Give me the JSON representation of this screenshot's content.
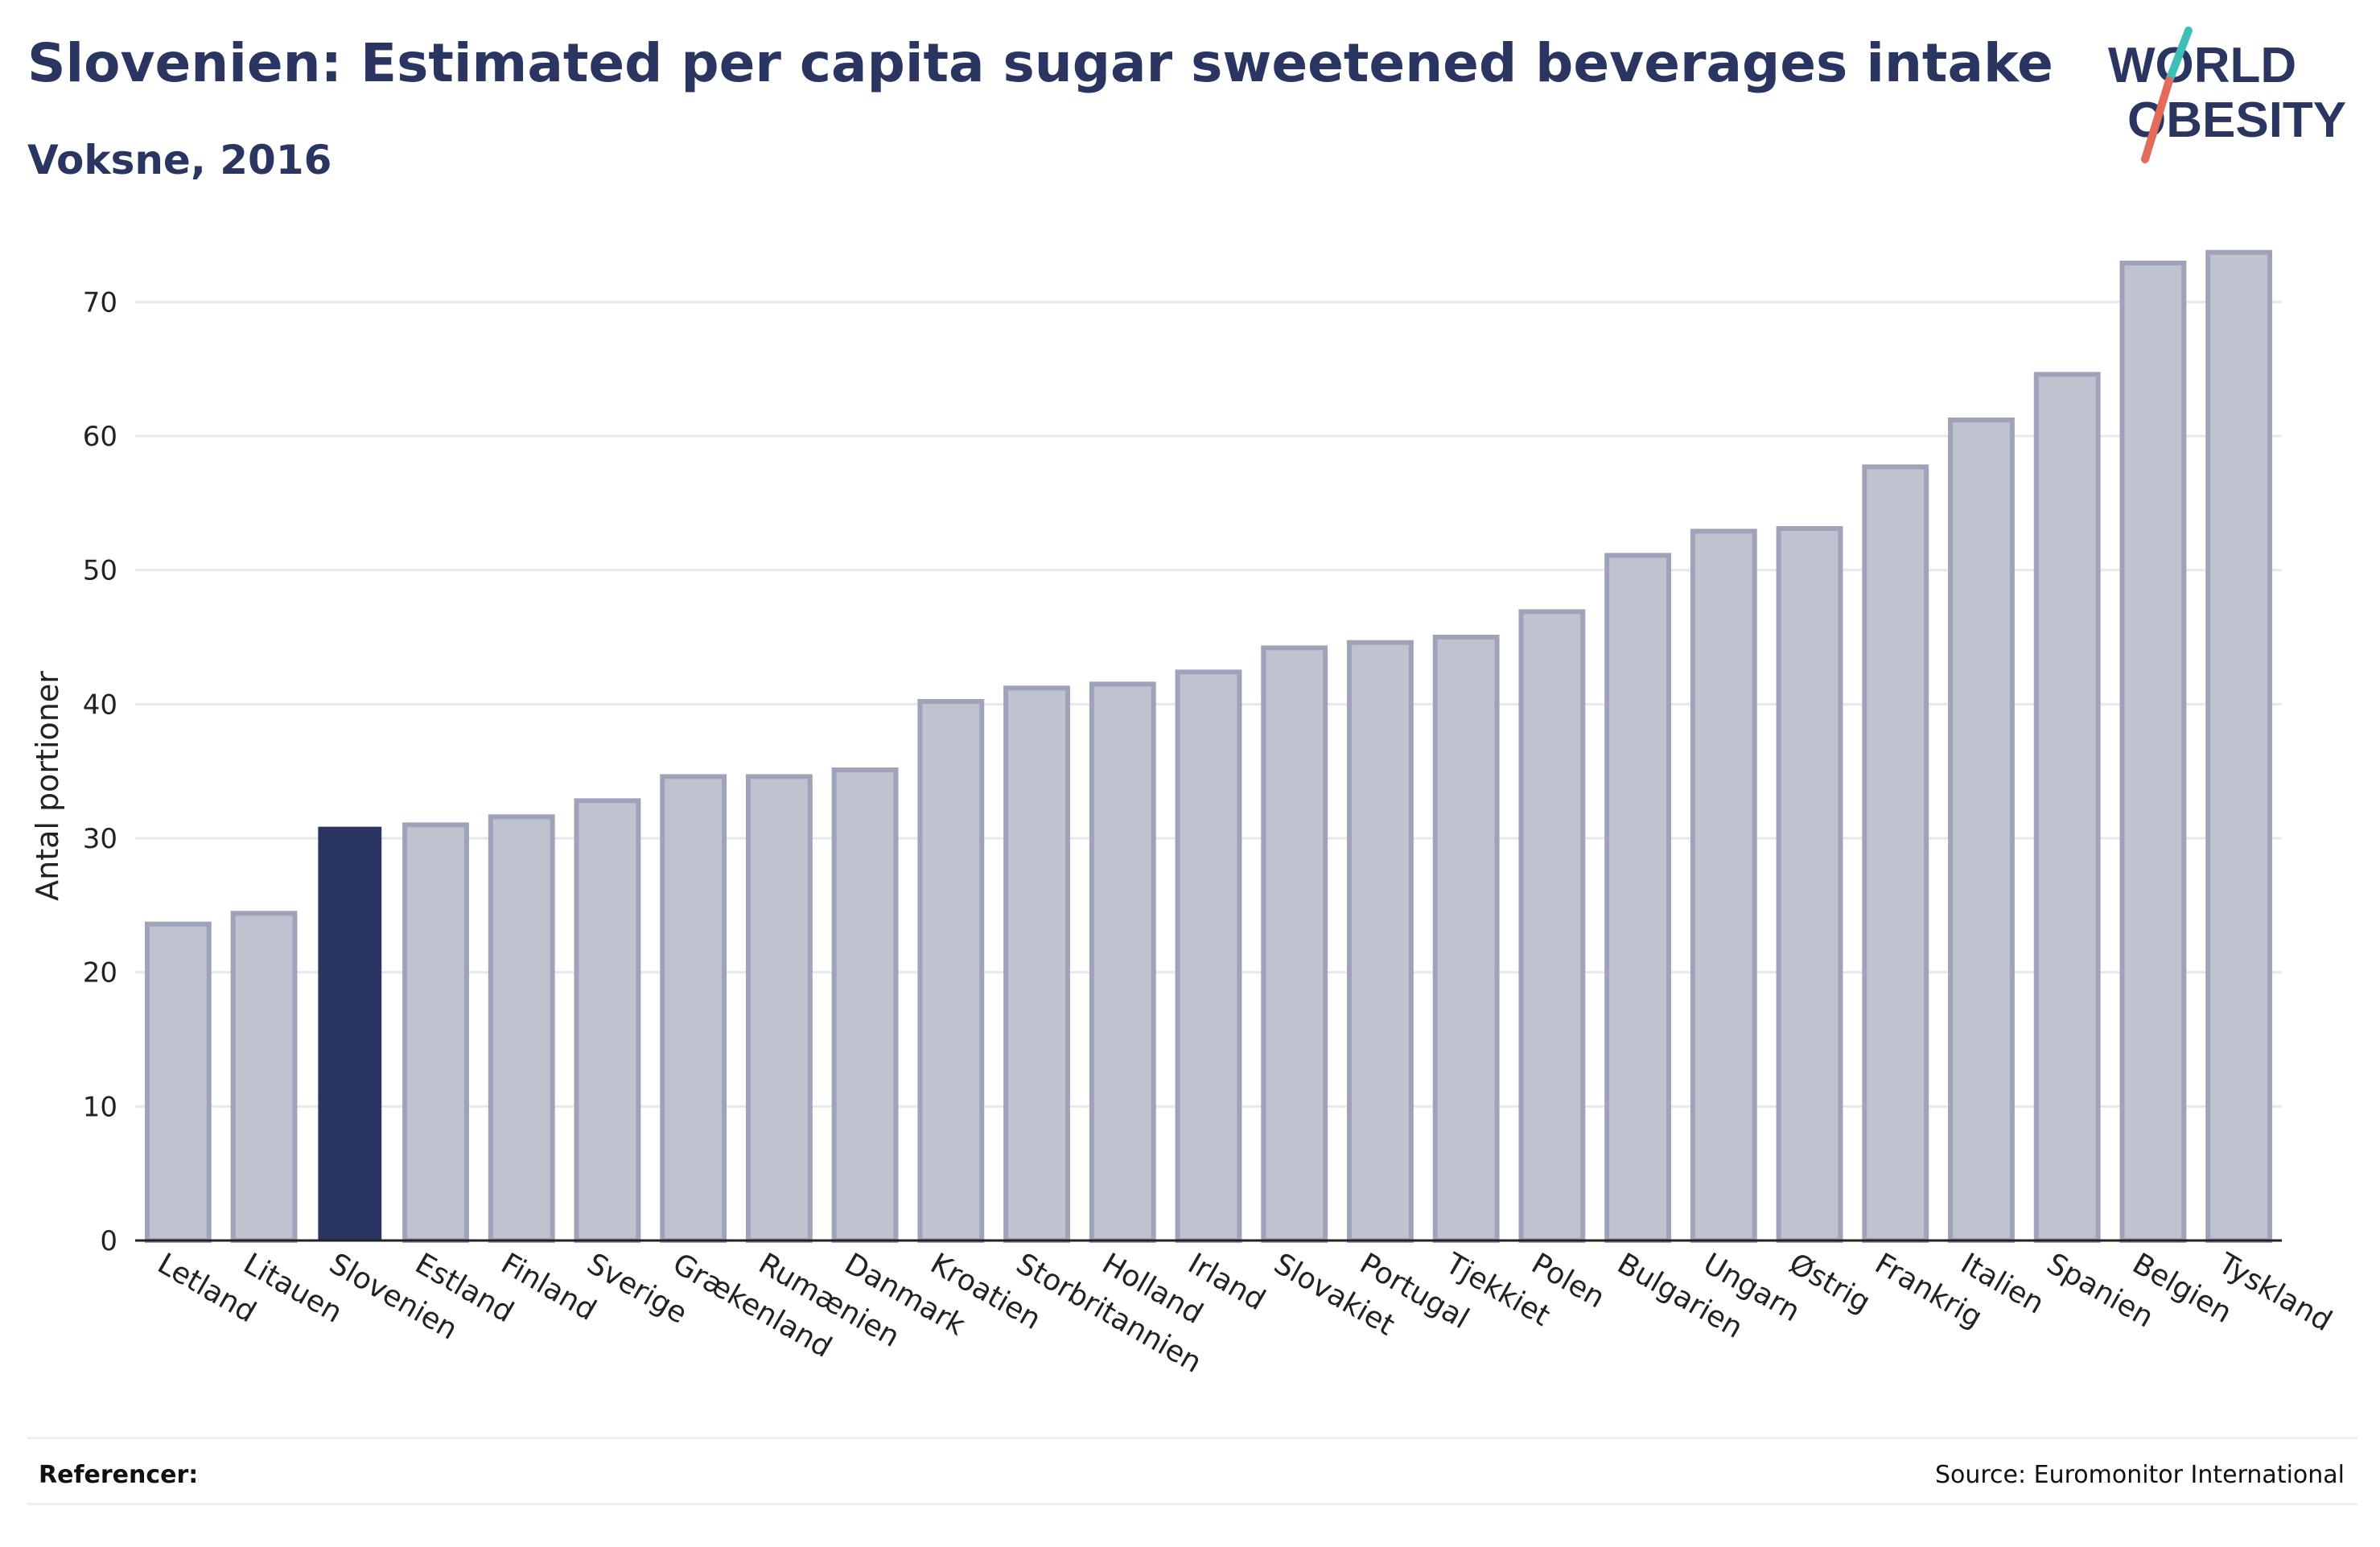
{
  "header": {
    "title": "Slovenien: Estimated per capita sugar sweetened beverages intake",
    "subtitle": "Voksne, 2016"
  },
  "logo": {
    "line1": "WORLD",
    "line2": "OBESITY"
  },
  "footer": {
    "references_label": "Referencer:",
    "source": "Source: Euromonitor International"
  },
  "colors": {
    "highlight": "#2a3561",
    "bar_fill": "#bfc2cf",
    "bar_stroke": "#9ea3b9",
    "title": "#2a3561",
    "logo_teal": "#3dbfb8",
    "logo_red": "#e46a5a"
  },
  "chart_data": {
    "type": "bar",
    "ylabel": "Antal portioner",
    "xlabel": "",
    "ylim": [
      0,
      75
    ],
    "yticks": [
      0,
      10,
      20,
      30,
      40,
      50,
      60,
      70
    ],
    "grid": true,
    "highlight": "Slovenien",
    "categories": [
      "Letland",
      "Litauen",
      "Slovenien",
      "Estland",
      "Finland",
      "Sverige",
      "Grækenland",
      "Rumænien",
      "Danmark",
      "Kroatien",
      "Storbritannien",
      "Holland",
      "Irland",
      "Slovakiet",
      "Portugal",
      "Tjekkiet",
      "Polen",
      "Bulgarien",
      "Ungarn",
      "Østrig",
      "Frankrig",
      "Italien",
      "Spanien",
      "Belgien",
      "Tyskland"
    ],
    "values": [
      23.6,
      24.4,
      30.8,
      31.0,
      31.6,
      32.8,
      34.6,
      34.6,
      35.1,
      40.2,
      41.2,
      41.5,
      42.4,
      44.2,
      44.6,
      45.0,
      46.9,
      51.1,
      52.9,
      53.1,
      57.7,
      61.2,
      64.6,
      72.9,
      73.7
    ]
  }
}
